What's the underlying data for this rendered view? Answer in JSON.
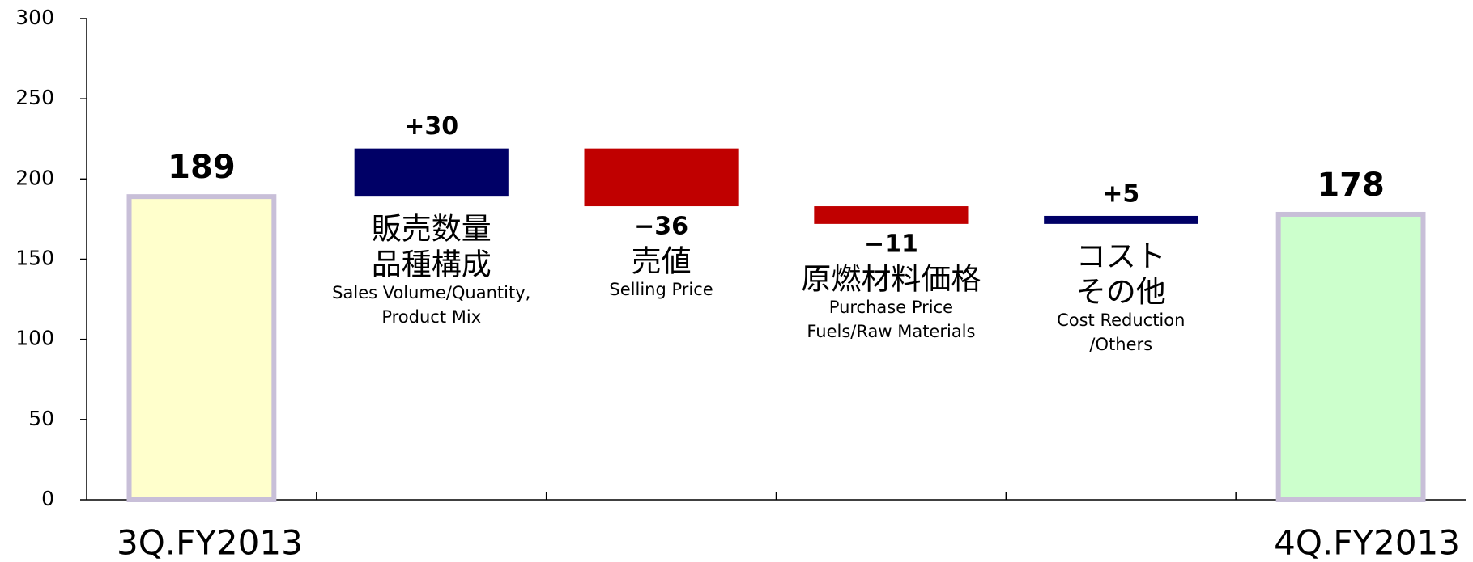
{
  "chart_data": {
    "type": "waterfall",
    "categories": [
      "3Q.FY2013",
      {
        "jp": [
          "販売数量",
          "品種構成"
        ],
        "en": [
          "Sales Volume/Quantity,",
          "Product Mix"
        ]
      },
      {
        "jp": [
          "売値"
        ],
        "en": [
          "Selling Price"
        ]
      },
      {
        "jp": [
          "原燃材料価格"
        ],
        "en": [
          "Purchase Price",
          "Fuels/Raw Materials"
        ]
      },
      {
        "jp": [
          "コスト",
          "その他"
        ],
        "en": [
          "Cost Reduction",
          "/Others"
        ]
      },
      "4Q.FY2013"
    ],
    "values": [
      189,
      30,
      -36,
      -11,
      5,
      178
    ],
    "value_labels": [
      "189",
      "+30",
      "−36",
      "−11",
      "+5",
      "178"
    ],
    "colors": [
      "#ffffcc",
      "#000066",
      "#c00000",
      "#c00000",
      "#000066",
      "#ccffcc"
    ],
    "total_border_color": "#c8bfd8",
    "ylim": [
      0,
      300
    ],
    "yticks": [
      0,
      50,
      100,
      150,
      200,
      250,
      300
    ]
  }
}
